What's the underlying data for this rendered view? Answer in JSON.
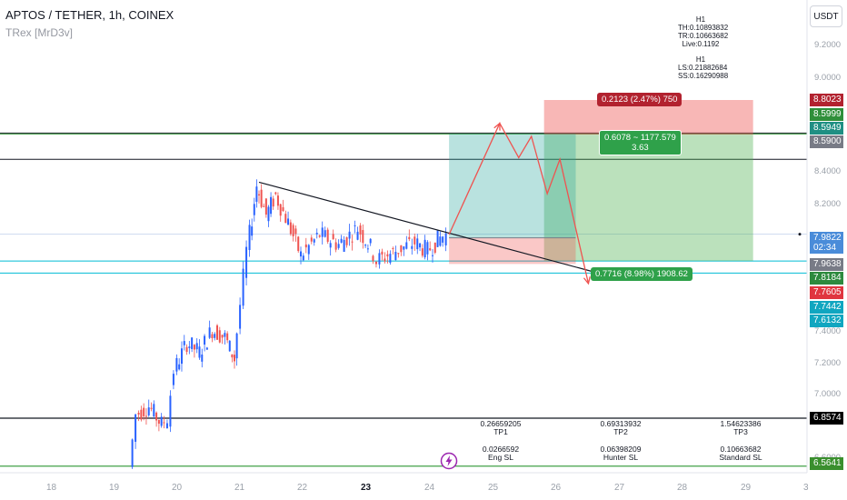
{
  "header": {
    "title": "APTOS / TETHER, 1h, COINEX",
    "indicator": "TRex [MrD3v]"
  },
  "info_top": [
    "H1",
    "TH:0.10893832",
    "TR:0.10663682",
    "Live:0.1192"
  ],
  "info_bottom": [
    "H1",
    "LS:0.21882684",
    "SS:0.16290988"
  ],
  "currency_button": "USDT",
  "price_axis_ticks": [
    "9.2000",
    "9.0000",
    "8.4000",
    "8.2000",
    "7.4000",
    "7.2000",
    "7.0000",
    "6.6000"
  ],
  "price_tags": [
    {
      "label": "8.8023",
      "color": "#b2222f"
    },
    {
      "label": "8.5999",
      "color": "#2f8f3a"
    },
    {
      "label": "8.5949",
      "color": "#1f8f83"
    },
    {
      "label": "8.5900",
      "color": "#787b86"
    },
    {
      "label": "7.9822",
      "sub": "02:34",
      "color": "#4a8cd9"
    },
    {
      "label": "7.9638",
      "color": "#787b86"
    },
    {
      "label": "7.8184",
      "color": "#2d8a3e"
    },
    {
      "label": "7.7605",
      "color": "#e0353f"
    },
    {
      "label": "7.7442",
      "color": "#10a6c0"
    },
    {
      "label": "7.6132",
      "color": "#10a6c0"
    },
    {
      "label": "6.8574",
      "color": "#000000"
    },
    {
      "label": "6.5641",
      "color": "#3a8f2e"
    }
  ],
  "x_axis_labels": [
    {
      "label": "18",
      "bold": false
    },
    {
      "label": "19",
      "bold": false
    },
    {
      "label": "20",
      "bold": false
    },
    {
      "label": "21",
      "bold": false
    },
    {
      "label": "22",
      "bold": false
    },
    {
      "label": "23",
      "bold": true
    },
    {
      "label": "24",
      "bold": false
    },
    {
      "label": "25",
      "bold": false
    },
    {
      "label": "26",
      "bold": false
    },
    {
      "label": "27",
      "bold": false
    },
    {
      "label": "28",
      "bold": false
    },
    {
      "label": "29",
      "bold": false
    },
    {
      "label": "3",
      "bold": false
    }
  ],
  "position_short": {
    "stop_label": "0.2123 (2.47%) 750",
    "target_label": "0.7716 (8.98%) 1908.62",
    "entry_label": "0.6078 ~ 1177.579",
    "rr_label": "3.63"
  },
  "targets": [
    {
      "value": "0.26659205",
      "name": "TP1",
      "sl_value": "0.0266592",
      "sl_name": "Eng SL"
    },
    {
      "value": "0.69313932",
      "name": "TP2",
      "sl_value": "0.06398209",
      "sl_name": "Hunter SL"
    },
    {
      "value": "1.54623386",
      "name": "TP3",
      "sl_value": "0.10663682",
      "sl_name": "Standard SL"
    }
  ],
  "colors": {
    "bull": "#2962ff",
    "bear": "#ef5350",
    "trendline": "#131722",
    "projection": "#ef5350"
  },
  "chart_data": {
    "type": "line",
    "symbol": "APTOS / TETHER",
    "interval": "1h",
    "exchange": "COINEX",
    "last_price": 7.9822,
    "ylim": [
      6.55,
      9.35
    ],
    "x_range": [
      "18",
      "3"
    ],
    "price_path": [
      {
        "t": 19.3,
        "p": 6.56
      },
      {
        "t": 19.4,
        "p": 6.88
      },
      {
        "t": 19.6,
        "p": 6.93
      },
      {
        "t": 19.8,
        "p": 6.82
      },
      {
        "t": 19.9,
        "p": 6.86
      },
      {
        "t": 20.0,
        "p": 7.15
      },
      {
        "t": 20.2,
        "p": 7.32
      },
      {
        "t": 20.4,
        "p": 7.26
      },
      {
        "t": 20.6,
        "p": 7.4
      },
      {
        "t": 20.8,
        "p": 7.35
      },
      {
        "t": 20.95,
        "p": 7.22
      },
      {
        "t": 21.05,
        "p": 7.55
      },
      {
        "t": 21.15,
        "p": 7.88
      },
      {
        "t": 21.3,
        "p": 8.28
      },
      {
        "t": 21.45,
        "p": 8.1
      },
      {
        "t": 21.6,
        "p": 8.22
      },
      {
        "t": 21.8,
        "p": 8.05
      },
      {
        "t": 22.0,
        "p": 7.85
      },
      {
        "t": 22.3,
        "p": 7.98
      },
      {
        "t": 22.6,
        "p": 7.92
      },
      {
        "t": 22.9,
        "p": 8.02
      },
      {
        "t": 23.1,
        "p": 7.9
      },
      {
        "t": 23.2,
        "p": 7.82
      },
      {
        "t": 23.5,
        "p": 7.88
      },
      {
        "t": 23.8,
        "p": 7.93
      },
      {
        "t": 24.0,
        "p": 7.88
      },
      {
        "t": 24.2,
        "p": 7.96
      },
      {
        "t": 24.3,
        "p": 7.98
      }
    ],
    "horizontal_levels": [
      8.5999,
      8.5949,
      8.44,
      7.9822,
      7.8184,
      7.7442,
      6.8574,
      6.5641
    ],
    "trendline": {
      "start": {
        "t": 21.3,
        "p": 8.3
      },
      "end": {
        "t": 26.6,
        "p": 7.75
      }
    },
    "projection_path": [
      {
        "t": 24.3,
        "p": 7.98
      },
      {
        "t": 25.1,
        "p": 8.66
      },
      {
        "t": 25.4,
        "p": 8.45
      },
      {
        "t": 25.6,
        "p": 8.58
      },
      {
        "t": 25.85,
        "p": 8.23
      },
      {
        "t": 26.05,
        "p": 8.44
      },
      {
        "t": 26.5,
        "p": 7.68
      }
    ],
    "short_position": {
      "entry": 8.59,
      "stop": 8.8023,
      "target": 7.8184,
      "stop_pct": 2.47,
      "target_pct": 8.98,
      "risk_reward": 3.63
    },
    "long_position": {
      "entry": 7.96,
      "target": 8.595,
      "stop": 7.8
    }
  }
}
